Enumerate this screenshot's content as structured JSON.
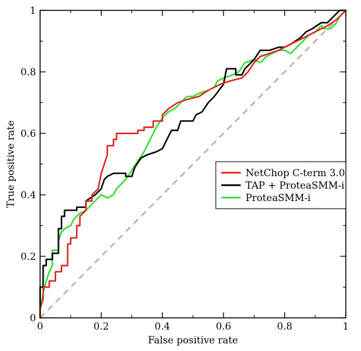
{
  "chart_data": {
    "type": "line",
    "xlabel": "False positive rate",
    "ylabel": "True positive rate",
    "xlim": [
      0,
      1
    ],
    "ylim": [
      0,
      1
    ],
    "x_ticks": [
      0,
      0.2,
      0.4,
      0.6,
      0.8,
      1
    ],
    "y_ticks": [
      0,
      0.2,
      0.4,
      0.6,
      0.8,
      1
    ],
    "x_tick_labels": [
      "0",
      "0.2",
      "0.4",
      "0.6",
      "0.8",
      "1"
    ],
    "y_tick_labels": [
      "0",
      "0.2",
      "0.4",
      "0.6",
      "0.8",
      "1"
    ],
    "grid": false,
    "legend_position": "right",
    "reference_line": {
      "points": [
        [
          0,
          0
        ],
        [
          1,
          1
        ]
      ],
      "color": "#c09595",
      "style": "dashed"
    },
    "series": [
      {
        "name": "NetChop C-term 3.0",
        "color": "#e0241c",
        "points": [
          [
            0,
            0
          ],
          [
            0,
            0.03
          ],
          [
            0.01,
            0.06
          ],
          [
            0.01,
            0.1
          ],
          [
            0.03,
            0.1
          ],
          [
            0.03,
            0.12
          ],
          [
            0.05,
            0.12
          ],
          [
            0.05,
            0.15
          ],
          [
            0.07,
            0.15
          ],
          [
            0.07,
            0.17
          ],
          [
            0.09,
            0.17
          ],
          [
            0.09,
            0.24
          ],
          [
            0.1,
            0.24
          ],
          [
            0.1,
            0.26
          ],
          [
            0.12,
            0.26
          ],
          [
            0.12,
            0.3
          ],
          [
            0.13,
            0.3
          ],
          [
            0.13,
            0.33
          ],
          [
            0.15,
            0.35
          ],
          [
            0.15,
            0.38
          ],
          [
            0.17,
            0.38
          ],
          [
            0.17,
            0.4
          ],
          [
            0.19,
            0.42
          ],
          [
            0.2,
            0.47
          ],
          [
            0.21,
            0.5
          ],
          [
            0.22,
            0.53
          ],
          [
            0.22,
            0.56
          ],
          [
            0.24,
            0.56
          ],
          [
            0.24,
            0.58
          ],
          [
            0.25,
            0.58
          ],
          [
            0.25,
            0.6
          ],
          [
            0.32,
            0.6
          ],
          [
            0.32,
            0.61
          ],
          [
            0.34,
            0.61
          ],
          [
            0.34,
            0.62
          ],
          [
            0.37,
            0.62
          ],
          [
            0.37,
            0.64
          ],
          [
            0.4,
            0.64
          ],
          [
            0.4,
            0.66
          ],
          [
            0.42,
            0.68
          ],
          [
            0.45,
            0.7
          ],
          [
            0.48,
            0.71
          ],
          [
            0.52,
            0.72
          ],
          [
            0.55,
            0.74
          ],
          [
            0.57,
            0.75
          ],
          [
            0.59,
            0.76
          ],
          [
            0.62,
            0.77
          ],
          [
            0.66,
            0.78
          ],
          [
            0.68,
            0.8
          ],
          [
            0.7,
            0.83
          ],
          [
            0.72,
            0.85
          ],
          [
            0.75,
            0.86
          ],
          [
            0.78,
            0.87
          ],
          [
            0.82,
            0.89
          ],
          [
            0.86,
            0.91
          ],
          [
            0.9,
            0.93
          ],
          [
            0.94,
            0.95
          ],
          [
            0.97,
            0.97
          ],
          [
            1,
            1
          ]
        ]
      },
      {
        "name": "TAP + ProteaSMM-i",
        "color": "#000000",
        "points": [
          [
            0,
            0
          ],
          [
            0,
            0.1
          ],
          [
            0.01,
            0.1
          ],
          [
            0.01,
            0.17
          ],
          [
            0.02,
            0.17
          ],
          [
            0.02,
            0.19
          ],
          [
            0.04,
            0.19
          ],
          [
            0.04,
            0.21
          ],
          [
            0.06,
            0.21
          ],
          [
            0.06,
            0.29
          ],
          [
            0.07,
            0.29
          ],
          [
            0.07,
            0.33
          ],
          [
            0.08,
            0.33
          ],
          [
            0.08,
            0.35
          ],
          [
            0.12,
            0.35
          ],
          [
            0.12,
            0.36
          ],
          [
            0.15,
            0.36
          ],
          [
            0.15,
            0.38
          ],
          [
            0.18,
            0.4
          ],
          [
            0.2,
            0.42
          ],
          [
            0.21,
            0.45
          ],
          [
            0.22,
            0.46
          ],
          [
            0.24,
            0.47
          ],
          [
            0.28,
            0.47
          ],
          [
            0.28,
            0.46
          ],
          [
            0.3,
            0.46
          ],
          [
            0.31,
            0.49
          ],
          [
            0.33,
            0.52
          ],
          [
            0.35,
            0.53
          ],
          [
            0.38,
            0.54
          ],
          [
            0.4,
            0.55
          ],
          [
            0.42,
            0.59
          ],
          [
            0.43,
            0.61
          ],
          [
            0.45,
            0.61
          ],
          [
            0.46,
            0.64
          ],
          [
            0.5,
            0.64
          ],
          [
            0.51,
            0.66
          ],
          [
            0.53,
            0.67
          ],
          [
            0.55,
            0.7
          ],
          [
            0.57,
            0.72
          ],
          [
            0.6,
            0.76
          ],
          [
            0.61,
            0.81
          ],
          [
            0.64,
            0.81
          ],
          [
            0.64,
            0.79
          ],
          [
            0.66,
            0.79
          ],
          [
            0.67,
            0.81
          ],
          [
            0.7,
            0.84
          ],
          [
            0.72,
            0.87
          ],
          [
            0.75,
            0.87
          ],
          [
            0.78,
            0.88
          ],
          [
            0.8,
            0.88
          ],
          [
            0.82,
            0.89
          ],
          [
            0.85,
            0.91
          ],
          [
            0.87,
            0.93
          ],
          [
            0.89,
            0.94
          ],
          [
            0.92,
            0.96
          ],
          [
            0.94,
            0.96
          ],
          [
            0.96,
            0.98
          ],
          [
            0.98,
            1
          ],
          [
            1,
            1
          ]
        ]
      },
      {
        "name": "ProteaSMM-i",
        "color": "#33dd33",
        "points": [
          [
            0,
            0
          ],
          [
            0,
            0.03
          ],
          [
            0.01,
            0.08
          ],
          [
            0.02,
            0.12
          ],
          [
            0.03,
            0.15
          ],
          [
            0.04,
            0.17
          ],
          [
            0.04,
            0.22
          ],
          [
            0.06,
            0.22
          ],
          [
            0.06,
            0.25
          ],
          [
            0.07,
            0.28
          ],
          [
            0.08,
            0.29
          ],
          [
            0.1,
            0.3
          ],
          [
            0.11,
            0.32
          ],
          [
            0.13,
            0.34
          ],
          [
            0.15,
            0.35
          ],
          [
            0.17,
            0.37
          ],
          [
            0.19,
            0.39
          ],
          [
            0.2,
            0.4
          ],
          [
            0.22,
            0.39
          ],
          [
            0.24,
            0.4
          ],
          [
            0.25,
            0.42
          ],
          [
            0.28,
            0.45
          ],
          [
            0.3,
            0.48
          ],
          [
            0.32,
            0.51
          ],
          [
            0.34,
            0.54
          ],
          [
            0.36,
            0.58
          ],
          [
            0.38,
            0.62
          ],
          [
            0.4,
            0.65
          ],
          [
            0.42,
            0.67
          ],
          [
            0.44,
            0.68
          ],
          [
            0.46,
            0.7
          ],
          [
            0.48,
            0.72
          ],
          [
            0.5,
            0.72
          ],
          [
            0.52,
            0.73
          ],
          [
            0.55,
            0.74
          ],
          [
            0.57,
            0.75
          ],
          [
            0.58,
            0.77
          ],
          [
            0.6,
            0.78
          ],
          [
            0.63,
            0.79
          ],
          [
            0.65,
            0.8
          ],
          [
            0.67,
            0.83
          ],
          [
            0.7,
            0.84
          ],
          [
            0.72,
            0.83
          ],
          [
            0.74,
            0.85
          ],
          [
            0.76,
            0.86
          ],
          [
            0.78,
            0.87
          ],
          [
            0.8,
            0.87
          ],
          [
            0.82,
            0.86
          ],
          [
            0.84,
            0.88
          ],
          [
            0.86,
            0.9
          ],
          [
            0.88,
            0.92
          ],
          [
            0.9,
            0.93
          ],
          [
            0.92,
            0.95
          ],
          [
            0.93,
            0.94
          ],
          [
            0.95,
            0.94
          ],
          [
            0.97,
            0.96
          ],
          [
            0.98,
            0.98
          ],
          [
            1,
            1
          ]
        ]
      }
    ]
  }
}
